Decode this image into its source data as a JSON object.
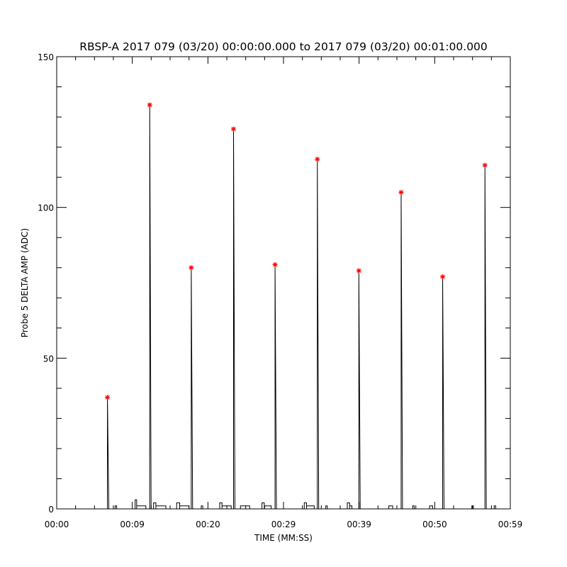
{
  "chart_data": {
    "type": "line",
    "title": "RBSP-A 2017 079 (03/20) 00:00:00.000 to 2017 079 (03/20) 00:01:00.000",
    "xlabel": "TIME (MM:SS)",
    "ylabel": "Probe 5 DELTA AMP (ADC)",
    "xlim": [
      0,
      59
    ],
    "ylim": [
      0,
      150
    ],
    "x_ticks": [
      {
        "value": 0,
        "label": "00:00"
      },
      {
        "value": 9.83,
        "label": "00:09"
      },
      {
        "value": 19.67,
        "label": "00:20"
      },
      {
        "value": 29.5,
        "label": "00:29"
      },
      {
        "value": 39.33,
        "label": "00:39"
      },
      {
        "value": 49.17,
        "label": "00:50"
      },
      {
        "value": 59,
        "label": "00:59"
      }
    ],
    "y_ticks": [
      {
        "value": 0,
        "label": "0"
      },
      {
        "value": 50,
        "label": "50"
      },
      {
        "value": 100,
        "label": "100"
      },
      {
        "value": 150,
        "label": "150"
      }
    ],
    "grid": false,
    "line_color": "#000000",
    "marker_color": "#ff0000",
    "peaks": {
      "x": [
        6.6,
        12.1,
        17.5,
        23.0,
        28.4,
        33.9,
        39.3,
        44.8,
        50.2,
        55.7
      ],
      "y": [
        37,
        134,
        80,
        126,
        81,
        116,
        79,
        105,
        77,
        114
      ]
    },
    "baseline_blips": [
      {
        "x0": 7.6,
        "x1": 7.8,
        "y": 1
      },
      {
        "x0": 10.2,
        "x1": 10.4,
        "y": 3
      },
      {
        "x0": 10.4,
        "x1": 11.6,
        "y": 1
      },
      {
        "x0": 12.6,
        "x1": 12.9,
        "y": 2
      },
      {
        "x0": 12.9,
        "x1": 14.2,
        "y": 1
      },
      {
        "x0": 15.6,
        "x1": 16.0,
        "y": 2
      },
      {
        "x0": 16.0,
        "x1": 17.2,
        "y": 1
      },
      {
        "x0": 18.8,
        "x1": 19.0,
        "y": 1
      },
      {
        "x0": 21.2,
        "x1": 21.5,
        "y": 2
      },
      {
        "x0": 21.5,
        "x1": 22.7,
        "y": 1
      },
      {
        "x0": 23.9,
        "x1": 25.1,
        "y": 1
      },
      {
        "x0": 26.7,
        "x1": 27.0,
        "y": 2
      },
      {
        "x0": 27.0,
        "x1": 27.9,
        "y": 1
      },
      {
        "x0": 32.2,
        "x1": 32.5,
        "y": 2
      },
      {
        "x0": 32.5,
        "x1": 33.5,
        "y": 1
      },
      {
        "x0": 35.0,
        "x1": 35.2,
        "y": 1
      },
      {
        "x0": 37.8,
        "x1": 38.1,
        "y": 2
      },
      {
        "x0": 38.1,
        "x1": 38.4,
        "y": 1
      },
      {
        "x0": 43.2,
        "x1": 43.7,
        "y": 1
      },
      {
        "x0": 46.3,
        "x1": 46.5,
        "y": 1
      },
      {
        "x0": 48.5,
        "x1": 48.9,
        "y": 1
      },
      {
        "x0": 54.0,
        "x1": 54.2,
        "y": 1
      },
      {
        "x0": 56.9,
        "x1": 57.1,
        "y": 1
      }
    ]
  }
}
